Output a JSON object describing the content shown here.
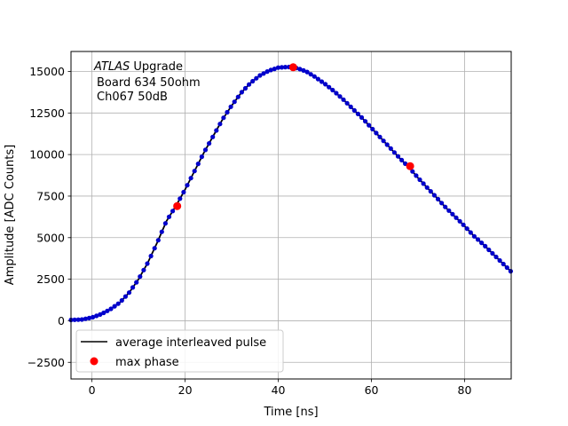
{
  "chart_data": {
    "type": "scatter",
    "xlabel": "Time [ns]",
    "ylabel": "Amplitude [ADC Counts]",
    "xlim": [
      -4.5,
      90
    ],
    "ylim": [
      -3500,
      16200
    ],
    "xticks": [
      0,
      20,
      40,
      60,
      80
    ],
    "yticks": [
      -2500,
      0,
      2500,
      5000,
      7500,
      10000,
      12500,
      15000
    ],
    "grid": true,
    "annotation": {
      "atlas": "ATLAS",
      "upgrade": " Upgrade",
      "line2": "Board 634 50ohm",
      "line3": "Ch067 50dB"
    },
    "legend": {
      "placement": "lower-left",
      "entries": [
        {
          "label": "average interleaved pulse",
          "color": "#000000",
          "marker": "line"
        },
        {
          "label": "max phase",
          "color": "#ff0000",
          "marker": "circle"
        }
      ]
    },
    "series": [
      {
        "name": "average interleaved pulse",
        "color": "#000000",
        "point_color": "#0000cc",
        "x": [
          -4.5,
          -2,
          0,
          2,
          4,
          6,
          8,
          10,
          12,
          14,
          16,
          18,
          20,
          22,
          24,
          26,
          28,
          30,
          32,
          34,
          36,
          38,
          40,
          42,
          43.2,
          44,
          46,
          48,
          50,
          52,
          54,
          56,
          58,
          60,
          62,
          64,
          66,
          68,
          70,
          72,
          74,
          76,
          78,
          80,
          82,
          84,
          86,
          88,
          90
        ],
        "y": [
          50,
          80,
          200,
          400,
          700,
          1100,
          1700,
          2500,
          3500,
          4700,
          6000,
          6900,
          7900,
          9000,
          10100,
          11100,
          12100,
          12950,
          13700,
          14300,
          14750,
          15050,
          15230,
          15270,
          15250,
          15200,
          15000,
          14650,
          14250,
          13800,
          13300,
          12750,
          12200,
          11600,
          11000,
          10400,
          9800,
          9250,
          8600,
          8000,
          7400,
          6800,
          6250,
          5700,
          5100,
          4600,
          4050,
          3500,
          2950
        ]
      },
      {
        "name": "max phase",
        "color": "#ff0000",
        "x": [
          18.3,
          43.2,
          68.3
        ],
        "y": [
          6900,
          15250,
          9300
        ]
      }
    ]
  }
}
